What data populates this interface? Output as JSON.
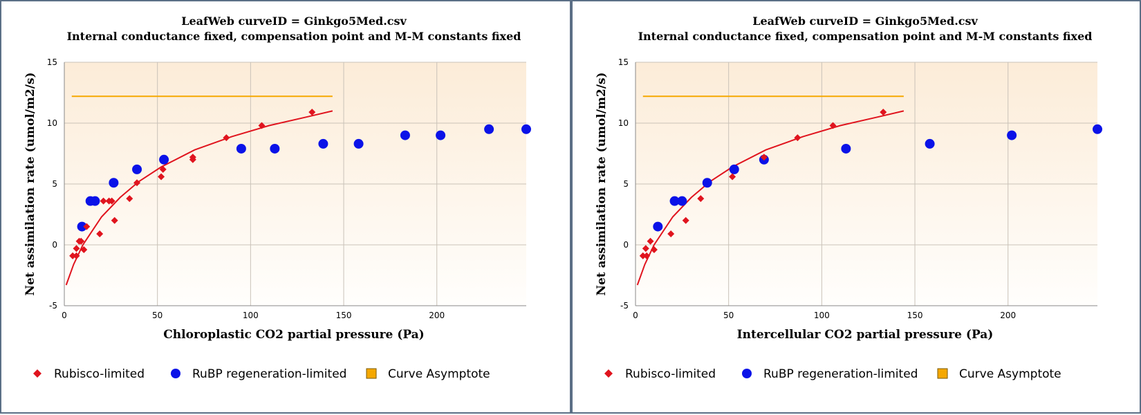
{
  "chart_data": [
    {
      "type": "scatter",
      "title": "LeafWeb curveID = Ginkgo5Med.csv",
      "subtitle": "Internal conductance fixed, compensation point and M-M constants fixed",
      "xlabel": "Chloroplastic CO2 partial pressure (Pa)",
      "ylabel": "Net assimilation rate (umol/m2/s)",
      "xlim": [
        0,
        248
      ],
      "ylim": [
        -5,
        15
      ],
      "x_ticks": [
        "0",
        "50",
        "100",
        "150",
        "200"
      ],
      "y_ticks": [
        "-5",
        "0",
        "5",
        "10",
        "15"
      ],
      "grid": true,
      "legend_position": "bottom",
      "series": [
        {
          "name": "Rubisco-limited",
          "marker": "diamond",
          "color": "#e0141e",
          "points": [
            [
              4.5,
              -0.9
            ],
            [
              6.5,
              -0.3
            ],
            [
              6.5,
              -0.9
            ],
            [
              8,
              0.3
            ],
            [
              9,
              0.3
            ],
            [
              10.5,
              -0.4
            ],
            [
              12,
              1.5
            ],
            [
              19,
              0.9
            ],
            [
              21,
              3.6
            ],
            [
              24,
              3.6
            ],
            [
              25.5,
              3.6
            ],
            [
              27,
              2
            ],
            [
              35,
              3.8
            ],
            [
              39,
              5.1
            ],
            [
              52,
              5.6
            ],
            [
              53,
              6.2
            ],
            [
              69,
              7.2
            ],
            [
              69,
              7
            ],
            [
              87,
              8.8
            ],
            [
              106,
              9.8
            ],
            [
              133,
              10.9
            ]
          ]
        },
        {
          "name": "RuBP regeneration-limited",
          "marker": "circle",
          "color": "#0a12e8",
          "points": [
            [
              9.5,
              1.5
            ],
            [
              14,
              3.6
            ],
            [
              16.5,
              3.6
            ],
            [
              26.5,
              5.1
            ],
            [
              39,
              6.2
            ],
            [
              53.5,
              7
            ],
            [
              95,
              7.9
            ],
            [
              113,
              7.9
            ],
            [
              139,
              8.3
            ],
            [
              158,
              8.3
            ],
            [
              183,
              9
            ],
            [
              202,
              9
            ],
            [
              228,
              9.5
            ],
            [
              248,
              9.5
            ]
          ]
        },
        {
          "name": "Curve Asymptote",
          "marker": "square",
          "color": "#f5a800",
          "y": 12.2,
          "x_range": [
            4,
            144
          ]
        }
      ],
      "fit_curve": {
        "color": "#e0141e",
        "points": [
          [
            1,
            -3.3
          ],
          [
            5,
            -1.6
          ],
          [
            10,
            0
          ],
          [
            20,
            2.3
          ],
          [
            30,
            3.9
          ],
          [
            40,
            5.2
          ],
          [
            52,
            6.4
          ],
          [
            70,
            7.8
          ],
          [
            90,
            8.9
          ],
          [
            110,
            9.8
          ],
          [
            130,
            10.5
          ],
          [
            144,
            11
          ]
        ]
      }
    },
    {
      "type": "scatter",
      "title": "LeafWeb curveID = Ginkgo5Med.csv",
      "subtitle": "Internal conductance fixed, compensation point and M-M constants fixed",
      "xlabel": "Intercellular CO2 partial pressure (Pa)",
      "ylabel": "Net assimilation rate (umol/m2/s)",
      "xlim": [
        0,
        248
      ],
      "ylim": [
        -5,
        15
      ],
      "x_ticks": [
        "0",
        "50",
        "100",
        "150",
        "200"
      ],
      "y_ticks": [
        "-5",
        "0",
        "5",
        "10",
        "15"
      ],
      "grid": true,
      "legend_position": "bottom",
      "series": [
        {
          "name": "Rubisco-limited",
          "marker": "diamond",
          "color": "#e0141e",
          "points": [
            [
              4,
              -0.9
            ],
            [
              5.5,
              -0.3
            ],
            [
              6,
              -0.9
            ],
            [
              8,
              0.3
            ],
            [
              10,
              -0.4
            ],
            [
              19,
              0.9
            ],
            [
              27,
              2
            ],
            [
              35,
              3.8
            ],
            [
              52,
              5.6
            ],
            [
              69,
              7.2
            ],
            [
              87,
              8.8
            ],
            [
              106,
              9.8
            ],
            [
              133,
              10.9
            ]
          ]
        },
        {
          "name": "RuBP regeneration-limited",
          "marker": "circle",
          "color": "#0a12e8",
          "points": [
            [
              12,
              1.5
            ],
            [
              21,
              3.6
            ],
            [
              25,
              3.6
            ],
            [
              38.5,
              5.1
            ],
            [
              53,
              6.2
            ],
            [
              69,
              7
            ],
            [
              113,
              7.9
            ],
            [
              158,
              8.3
            ],
            [
              202,
              9
            ],
            [
              248,
              9.5
            ]
          ]
        },
        {
          "name": "Curve Asymptote",
          "marker": "square",
          "color": "#f5a800",
          "y": 12.2,
          "x_range": [
            4,
            144
          ]
        }
      ],
      "fit_curve": {
        "color": "#e0141e",
        "points": [
          [
            1,
            -3.3
          ],
          [
            5,
            -1.6
          ],
          [
            10,
            0
          ],
          [
            20,
            2.3
          ],
          [
            30,
            3.9
          ],
          [
            40,
            5.2
          ],
          [
            52,
            6.4
          ],
          [
            70,
            7.8
          ],
          [
            90,
            8.9
          ],
          [
            110,
            9.8
          ],
          [
            130,
            10.5
          ],
          [
            144,
            11
          ]
        ]
      }
    }
  ]
}
